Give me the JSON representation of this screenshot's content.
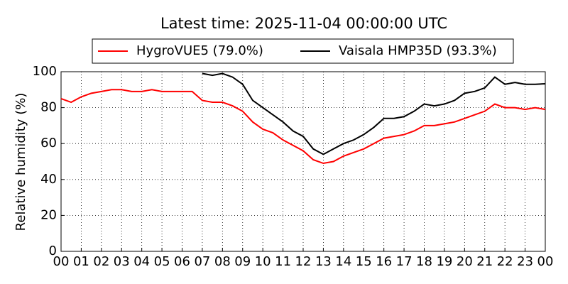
{
  "chart_data": {
    "type": "line",
    "title": "Latest time: 2025-11-04 00:00:00 UTC",
    "y_label": "Relative humidity (%)",
    "x": [
      0,
      0.5,
      1,
      1.5,
      2,
      2.5,
      3,
      3.5,
      4,
      4.5,
      5,
      5.5,
      6,
      6.5,
      7,
      7.5,
      8,
      8.5,
      9,
      9.5,
      10,
      10.5,
      11,
      11.5,
      12,
      12.5,
      13,
      13.5,
      14,
      14.5,
      15,
      15.5,
      16,
      16.5,
      17,
      17.5,
      18,
      18.5,
      19,
      19.5,
      20,
      20.5,
      21,
      21.5,
      22,
      22.5,
      23,
      23.5,
      24
    ],
    "series": [
      {
        "name": "HygroVUE5 (79.0%)",
        "color": "#ff0000",
        "values": [
          85,
          83,
          86,
          88,
          89,
          90,
          90,
          89,
          89,
          90,
          89,
          89,
          89,
          89,
          84,
          83,
          83,
          81,
          78,
          72,
          68,
          66,
          62,
          59,
          56,
          51,
          49,
          50,
          53,
          55,
          57,
          60,
          63,
          64,
          65,
          67,
          70,
          70,
          71,
          72,
          74,
          76,
          78,
          82,
          80,
          80,
          79,
          80,
          79
        ]
      },
      {
        "name": "Vaisala HMP35D (93.3%)",
        "color": "#000000",
        "values": [
          null,
          null,
          null,
          null,
          null,
          null,
          null,
          null,
          null,
          null,
          null,
          null,
          null,
          null,
          99,
          98,
          99,
          97,
          93,
          84,
          80,
          76,
          72,
          67,
          64,
          57,
          54,
          57,
          60,
          62,
          65,
          69,
          74,
          74,
          75,
          78,
          82,
          81,
          82,
          84,
          88,
          89,
          91,
          97,
          93,
          94,
          93,
          93,
          93.3
        ]
      }
    ],
    "xlim": [
      0,
      24
    ],
    "xticks": [
      {
        "value": 0,
        "label": "00"
      },
      {
        "value": 1,
        "label": "01"
      },
      {
        "value": 2,
        "label": "02"
      },
      {
        "value": 3,
        "label": "03"
      },
      {
        "value": 4,
        "label": "04"
      },
      {
        "value": 5,
        "label": "05"
      },
      {
        "value": 6,
        "label": "06"
      },
      {
        "value": 7,
        "label": "07"
      },
      {
        "value": 8,
        "label": "08"
      },
      {
        "value": 9,
        "label": "09"
      },
      {
        "value": 10,
        "label": "10"
      },
      {
        "value": 11,
        "label": "11"
      },
      {
        "value": 12,
        "label": "12"
      },
      {
        "value": 13,
        "label": "13"
      },
      {
        "value": 14,
        "label": "14"
      },
      {
        "value": 15,
        "label": "15"
      },
      {
        "value": 16,
        "label": "16"
      },
      {
        "value": 17,
        "label": "17"
      },
      {
        "value": 18,
        "label": "18"
      },
      {
        "value": 19,
        "label": "19"
      },
      {
        "value": 20,
        "label": "20"
      },
      {
        "value": 21,
        "label": "21"
      },
      {
        "value": 22,
        "label": "22"
      },
      {
        "value": 23,
        "label": "23"
      },
      {
        "value": 24,
        "label": "00"
      }
    ],
    "ylim": [
      0,
      100
    ],
    "yticks": [
      0,
      20,
      40,
      60,
      80,
      100
    ],
    "grid": true
  }
}
